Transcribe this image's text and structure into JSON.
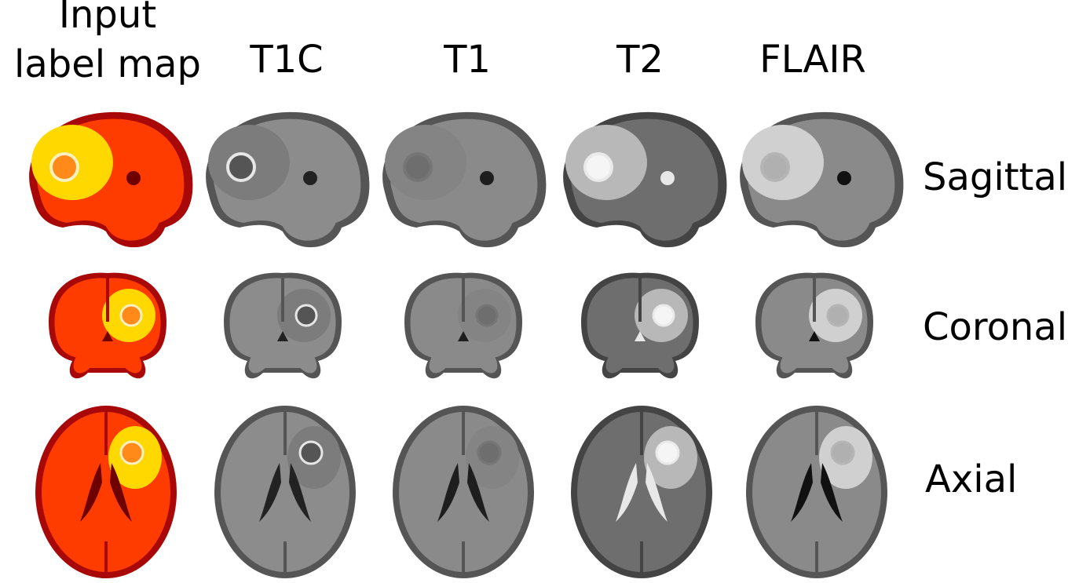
{
  "columns": [
    [
      "Input",
      "label map"
    ],
    [
      "T1C"
    ],
    [
      "T1"
    ],
    [
      "T2"
    ],
    [
      "FLAIR"
    ]
  ],
  "rows": [
    "Sagittal",
    "Coronal",
    "Axial"
  ]
}
